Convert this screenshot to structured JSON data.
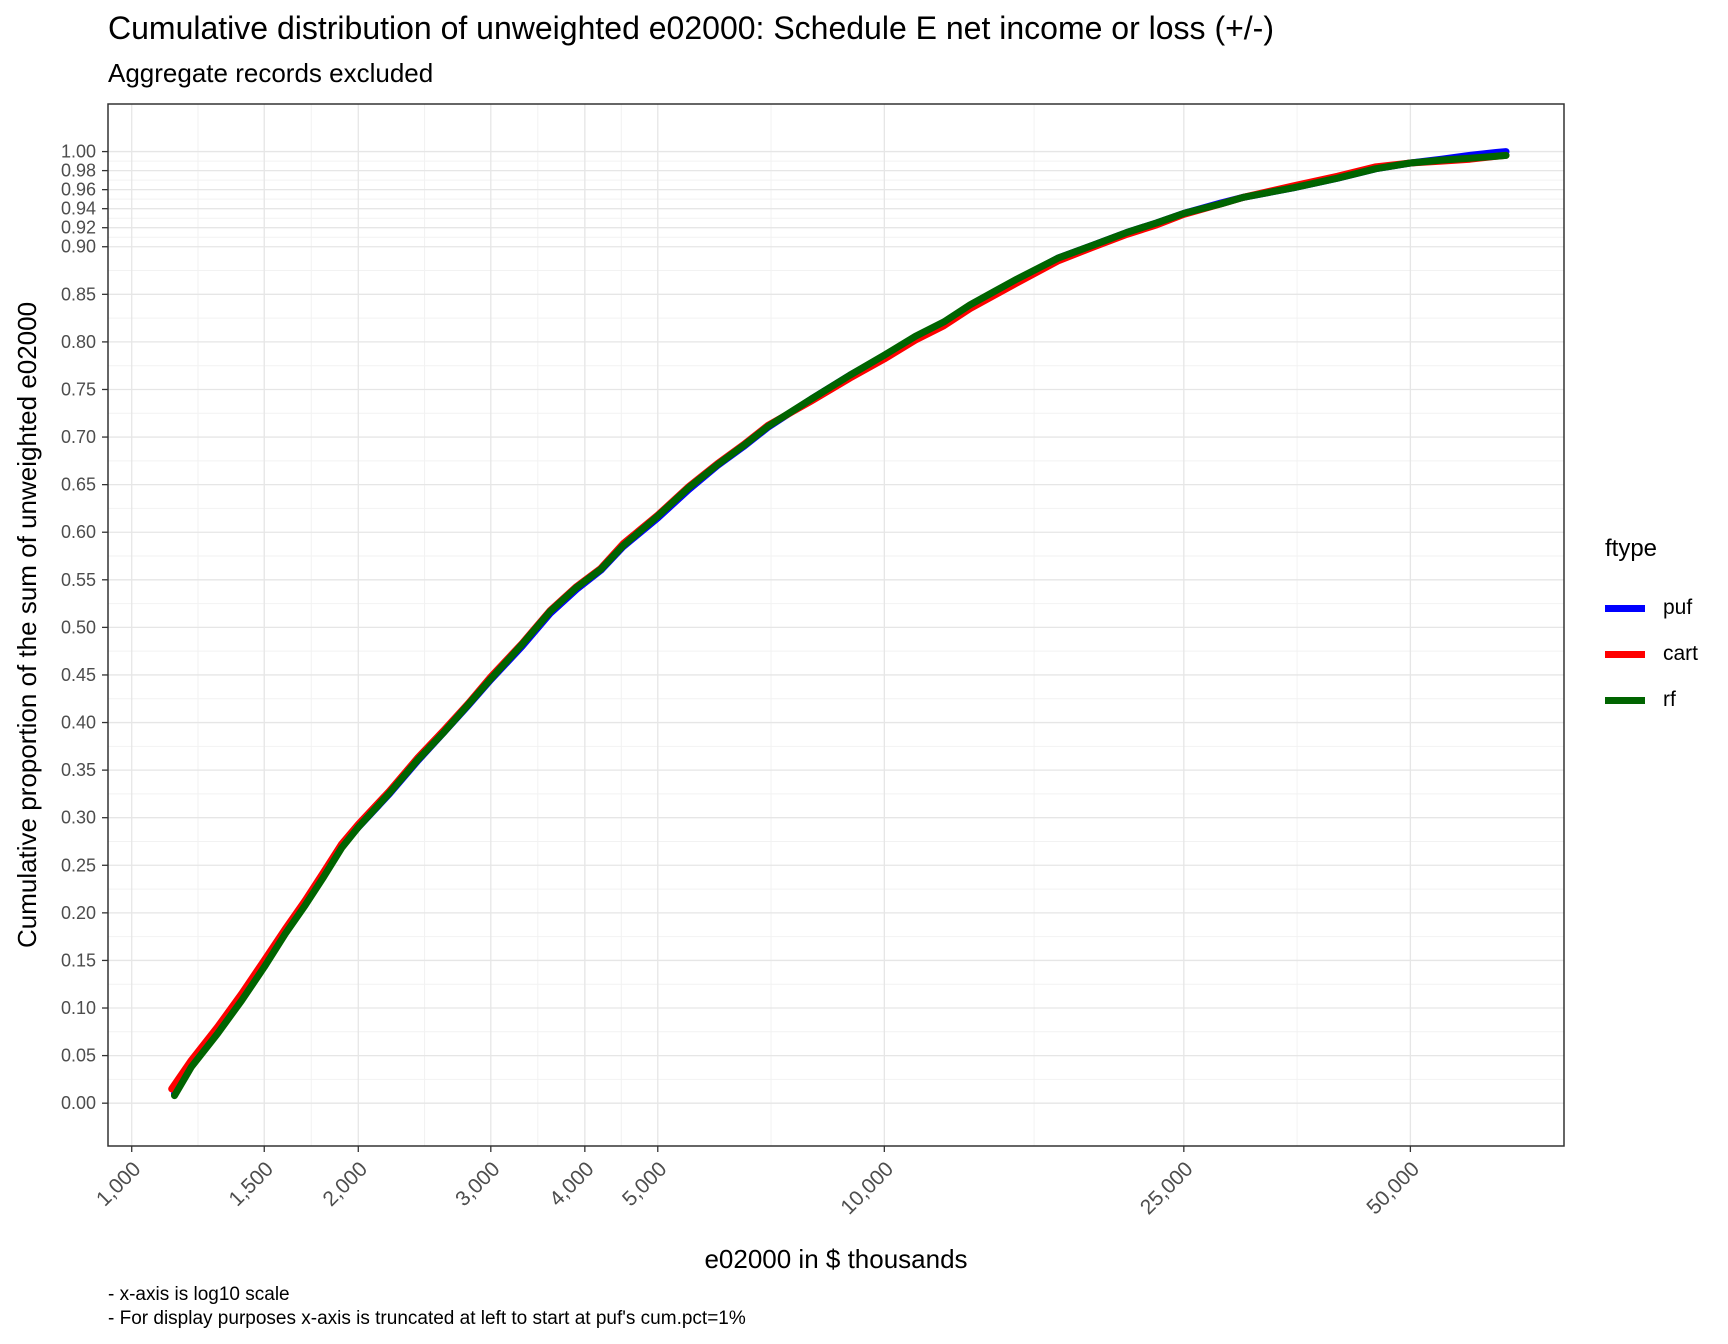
{
  "title": "Cumulative distribution of unweighted e02000: Schedule E net income or loss (+/-)",
  "subtitle": "Aggregate records excluded",
  "captions": [
    "- x-axis is log10 scale",
    "- For display purposes x-axis is truncated at left to start at puf's cum.pct=1%"
  ],
  "legend": {
    "title": "ftype",
    "items": [
      {
        "label": "puf",
        "color": "#0000FF"
      },
      {
        "label": "cart",
        "color": "#FF0000"
      },
      {
        "label": "rf",
        "color": "#006400"
      }
    ]
  },
  "chart_data": {
    "type": "line",
    "xlabel": "e02000 in $ thousands",
    "ylabel": "Cumulative proportion of the sum of unweighted e02000",
    "x_scale": "log10",
    "xlim": [
      930,
      80000
    ],
    "ylim": [
      -0.045,
      1.05
    ],
    "x_ticks": [
      1000,
      1500,
      2000,
      3000,
      4000,
      5000,
      10000,
      25000,
      50000
    ],
    "x_tick_labels": [
      "1,000",
      "1,500",
      "2,000",
      "3,000",
      "4,000",
      "5,000",
      "10,000",
      "25,000",
      "50,000"
    ],
    "y_ticks": [
      0,
      0.05,
      0.1,
      0.15,
      0.2,
      0.25,
      0.3,
      0.35,
      0.4,
      0.45,
      0.5,
      0.55,
      0.6,
      0.65,
      0.7,
      0.75,
      0.8,
      0.85,
      0.9,
      0.92,
      0.94,
      0.96,
      0.98,
      1.0
    ],
    "y_tick_labels": [
      "0.00",
      "0.05",
      "0.10",
      "0.15",
      "0.20",
      "0.25",
      "0.30",
      "0.35",
      "0.40",
      "0.45",
      "0.50",
      "0.55",
      "0.60",
      "0.65",
      "0.70",
      "0.75",
      "0.80",
      "0.85",
      "0.90",
      "0.92",
      "0.94",
      "0.96",
      "0.98",
      "1.00"
    ],
    "grid": true,
    "legend_position": "right",
    "series": [
      {
        "name": "puf",
        "color": "#0000FF",
        "x": [
          1140,
          1200,
          1300,
          1400,
          1500,
          1600,
          1700,
          1800,
          1900,
          2000,
          2200,
          2400,
          2600,
          2800,
          3000,
          3300,
          3600,
          3900,
          4200,
          4500,
          5000,
          5500,
          6000,
          6500,
          7000,
          8000,
          9000,
          10000,
          11000,
          12000,
          13000,
          14000,
          15000,
          17000,
          19000,
          21000,
          23000,
          25000,
          28000,
          30000,
          35000,
          40000,
          45000,
          50000,
          55000,
          60000,
          65000,
          67000
        ],
        "y": [
          0.01,
          0.04,
          0.075,
          0.11,
          0.145,
          0.18,
          0.21,
          0.24,
          0.27,
          0.29,
          0.325,
          0.36,
          0.39,
          0.418,
          0.445,
          0.48,
          0.515,
          0.54,
          0.56,
          0.585,
          0.615,
          0.645,
          0.67,
          0.69,
          0.71,
          0.74,
          0.765,
          0.785,
          0.805,
          0.82,
          0.838,
          0.852,
          0.865,
          0.888,
          0.902,
          0.915,
          0.925,
          0.935,
          0.946,
          0.952,
          0.962,
          0.972,
          0.982,
          0.988,
          0.992,
          0.996,
          0.999,
          1.0
        ]
      },
      {
        "name": "cart",
        "color": "#FF0000",
        "x": [
          1130,
          1200,
          1300,
          1400,
          1500,
          1600,
          1700,
          1800,
          1900,
          2000,
          2200,
          2400,
          2600,
          2800,
          3000,
          3300,
          3600,
          3900,
          4200,
          4500,
          5000,
          5500,
          6000,
          6500,
          7000,
          8000,
          9000,
          10000,
          11000,
          12000,
          13000,
          14000,
          15000,
          17000,
          19000,
          21000,
          23000,
          25000,
          28000,
          30000,
          35000,
          40000,
          45000,
          50000,
          55000,
          60000,
          65000,
          67000
        ],
        "y": [
          0.015,
          0.045,
          0.08,
          0.115,
          0.15,
          0.183,
          0.213,
          0.243,
          0.272,
          0.293,
          0.328,
          0.363,
          0.392,
          0.42,
          0.448,
          0.483,
          0.518,
          0.543,
          0.562,
          0.588,
          0.618,
          0.648,
          0.672,
          0.692,
          0.712,
          0.738,
          0.762,
          0.782,
          0.802,
          0.817,
          0.835,
          0.849,
          0.862,
          0.885,
          0.9,
          0.913,
          0.923,
          0.934,
          0.945,
          0.952,
          0.964,
          0.974,
          0.984,
          0.988,
          0.99,
          0.992,
          0.995,
          0.996
        ]
      },
      {
        "name": "rf",
        "color": "#006400",
        "x": [
          1140,
          1200,
          1300,
          1400,
          1500,
          1600,
          1700,
          1800,
          1900,
          2000,
          2200,
          2400,
          2600,
          2800,
          3000,
          3300,
          3600,
          3900,
          4200,
          4500,
          5000,
          5500,
          6000,
          6500,
          7000,
          8000,
          9000,
          10000,
          11000,
          12000,
          13000,
          14000,
          15000,
          17000,
          19000,
          21000,
          23000,
          25000,
          28000,
          30000,
          35000,
          40000,
          45000,
          50000,
          55000,
          60000,
          65000,
          67000
        ],
        "y": [
          0.008,
          0.038,
          0.073,
          0.108,
          0.143,
          0.178,
          0.208,
          0.238,
          0.268,
          0.29,
          0.326,
          0.361,
          0.39,
          0.419,
          0.446,
          0.482,
          0.517,
          0.542,
          0.561,
          0.586,
          0.617,
          0.647,
          0.671,
          0.691,
          0.711,
          0.74,
          0.765,
          0.786,
          0.806,
          0.821,
          0.839,
          0.853,
          0.866,
          0.888,
          0.902,
          0.915,
          0.925,
          0.935,
          0.945,
          0.952,
          0.962,
          0.972,
          0.982,
          0.988,
          0.991,
          0.993,
          0.995,
          0.996
        ]
      }
    ]
  }
}
